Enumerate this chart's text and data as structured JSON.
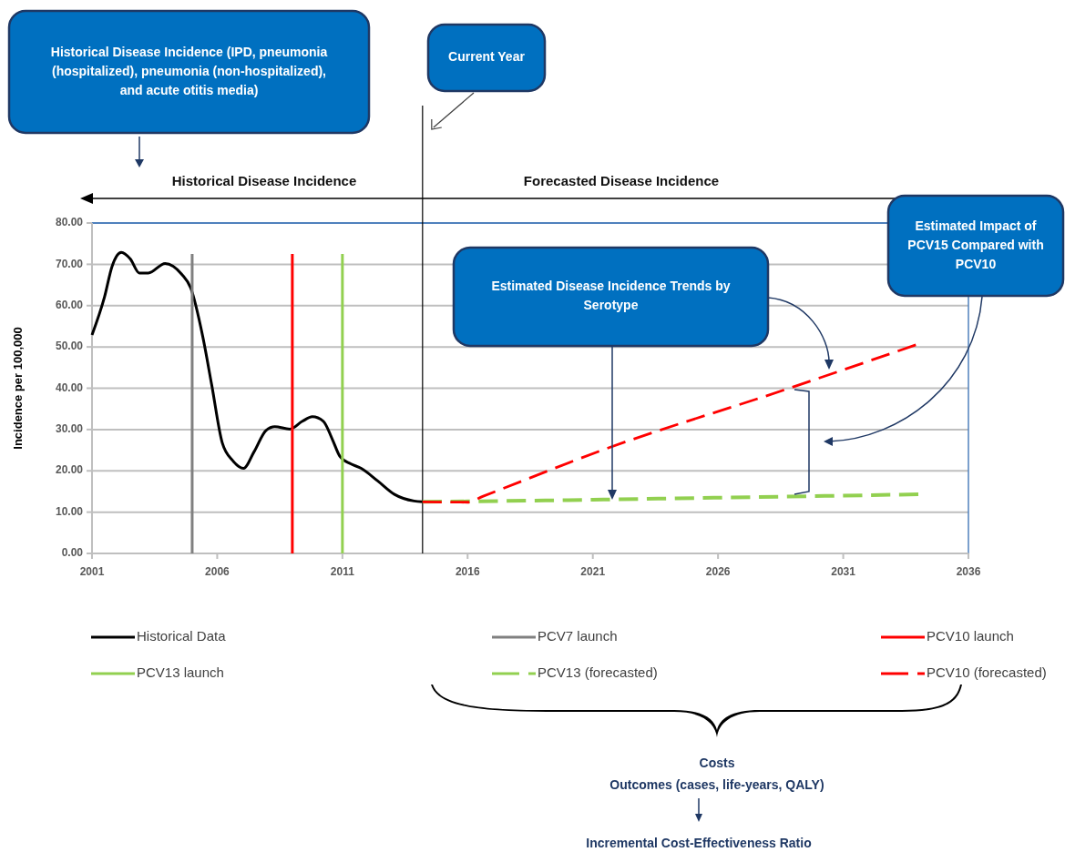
{
  "chart_data": {
    "type": "line",
    "ylabel": "Incidence per 100,000",
    "xlim": [
      2001,
      2036
    ],
    "ylim": [
      0,
      80
    ],
    "xticks": [
      2001,
      2006,
      2011,
      2016,
      2021,
      2026,
      2031,
      2036
    ],
    "yticks": [
      {
        "value": 0,
        "label": "0.00"
      },
      {
        "value": 10,
        "label": "10.00"
      },
      {
        "value": 20,
        "label": "20.00"
      },
      {
        "value": 30,
        "label": "30.00"
      },
      {
        "value": 40,
        "label": "40.00"
      },
      {
        "value": 50,
        "label": "50.00"
      },
      {
        "value": 60,
        "label": "60.00"
      },
      {
        "value": 70,
        "label": "70.00"
      },
      {
        "value": 80,
        "label": "80.00"
      }
    ],
    "grid": "y",
    "legend": "bottom",
    "series": [
      {
        "name": "Historical Data",
        "color": "#000000",
        "line_style": "solid",
        "x": [
          2001,
          2001.5,
          2001.8,
          2002.17,
          2002.53,
          2002.89,
          2003.25,
          2003.92,
          2004.58,
          2004.94,
          2005.42,
          2005.78,
          2006.2,
          2006.63,
          2007.05,
          2007.47,
          2007.95,
          2008.3,
          2008.9,
          2009.4,
          2009.8,
          2010.24,
          2010.6,
          2010.9,
          2011.33,
          2011.75,
          2012.4,
          2013.08,
          2013.86,
          2014.2
        ],
        "values": [
          52.9,
          62.1,
          69.5,
          72.9,
          71.3,
          67.9,
          67.9,
          70.2,
          67.6,
          64.3,
          52.6,
          40.8,
          26.8,
          22.4,
          20.6,
          24.6,
          29.8,
          30.7,
          30.1,
          32.0,
          33.1,
          32.0,
          27.6,
          23.5,
          21.7,
          20.6,
          17.6,
          14.3,
          12.7,
          12.5
        ]
      },
      {
        "name": "PCV7 launch",
        "color": "#808080",
        "line_style": "solid",
        "x": [
          2005,
          2005
        ],
        "values": [
          0,
          72.5
        ]
      },
      {
        "name": "PCV10 launch",
        "color": "#ff0000",
        "line_style": "solid",
        "x": [
          2009,
          2009
        ],
        "values": [
          0,
          72.5
        ]
      },
      {
        "name": "PCV13 launch",
        "color": "#92d050",
        "line_style": "solid",
        "x": [
          2011,
          2011
        ],
        "values": [
          0,
          72.5
        ]
      },
      {
        "name": "PCV13 (forecasted)",
        "color": "#92d050",
        "line_style": "dashed",
        "x": [
          2014.2,
          2016,
          2021,
          2026,
          2031,
          2034
        ],
        "values": [
          12.5,
          12.6,
          13.0,
          13.5,
          14.0,
          14.3
        ]
      },
      {
        "name": "PCV10 (forecasted)",
        "color": "#ff0000",
        "line_style": "dashed",
        "x": [
          2014.2,
          2016,
          2016.6,
          2021.6,
          2028.6,
          2033.9
        ],
        "values": [
          12.5,
          12.4,
          13.8,
          25.5,
          39.5,
          50.5
        ]
      }
    ],
    "ref_lines": [
      {
        "axis": "x",
        "value": 2014.2,
        "color": "#000000"
      }
    ],
    "annotations": [
      "Historical Disease Incidence (IPD, pneumonia (hospitalized), pneumonia (non-hospitalized), and acute otitis media)",
      "Historical Disease Incidence",
      "Forecasted Disease Incidence",
      "Estimated Disease Incidence Trends by Serotype",
      "Estimated Impact of PCV15 Compared with PCV10",
      "Costs",
      "Outcomes (cases, life-years, QALY)",
      "Incremental Cost-Effectiveness Ratio",
      "Current Year"
    ]
  }
}
